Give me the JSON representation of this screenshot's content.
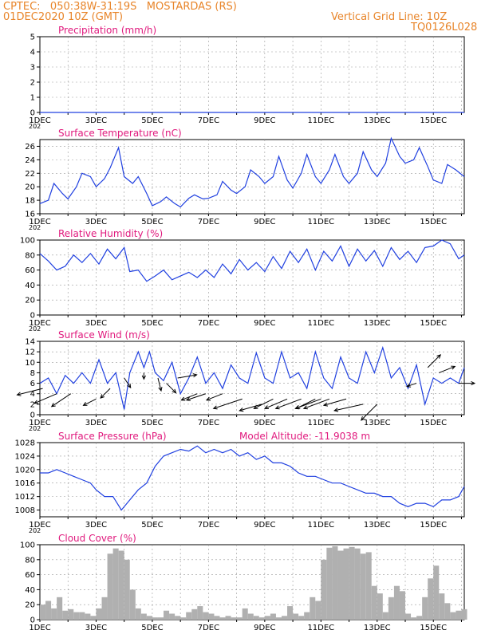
{
  "header": {
    "line1_left": "CPTEC:   050:38W-31:19S   MOSTARDAS (RS)",
    "line2_left": "01DEC2020 10Z (GMT)",
    "line1_right": "Vertical Grid Line: 10Z",
    "line2_right": "TQ0126L028"
  },
  "colors": {
    "header": "#e8852a",
    "title": "#e0197d",
    "line": "#2040e0",
    "cloud": "#b0b0b0",
    "arrow": "#000000"
  },
  "x_axis": {
    "tick_labels": [
      "1DEC",
      "3DEC",
      "5DEC",
      "7DEC",
      "9DEC",
      "11DEC",
      "13DEC",
      "15DEC"
    ],
    "tick_days": [
      1,
      3,
      5,
      7,
      9,
      11,
      13,
      15
    ],
    "range": [
      1,
      16.1
    ],
    "year_fragment": "202"
  },
  "chart_data": [
    {
      "type": "line",
      "title": "Precipitation (mm/h)",
      "ylim": [
        0,
        5
      ],
      "y_ticks": [
        "0",
        "1",
        "2",
        "3",
        "4",
        "5"
      ],
      "x": [
        1,
        16.1
      ],
      "values": [
        0,
        0
      ]
    },
    {
      "type": "line",
      "title": "Surface Temperature (nC)",
      "ylim": [
        16,
        27
      ],
      "y_ticks": [
        "16",
        "18",
        "20",
        "22",
        "24",
        "26"
      ],
      "x": [
        1.0,
        1.3,
        1.5,
        1.8,
        2.0,
        2.3,
        2.5,
        2.8,
        3.0,
        3.3,
        3.5,
        3.8,
        4.0,
        4.3,
        4.5,
        4.8,
        5.0,
        5.3,
        5.5,
        5.8,
        6.0,
        6.3,
        6.5,
        6.8,
        7.0,
        7.3,
        7.5,
        7.8,
        8.0,
        8.3,
        8.5,
        8.8,
        9.0,
        9.3,
        9.5,
        9.8,
        10.0,
        10.3,
        10.5,
        10.8,
        11.0,
        11.3,
        11.5,
        11.8,
        12.0,
        12.3,
        12.5,
        12.8,
        13.0,
        13.3,
        13.5,
        13.8,
        14.0,
        14.3,
        14.5,
        14.8,
        15.0,
        15.3,
        15.5,
        15.8,
        16.1
      ],
      "values": [
        17.5,
        18.0,
        20.5,
        19.0,
        18.2,
        20.0,
        22.0,
        21.5,
        20.0,
        21.2,
        22.8,
        25.8,
        21.5,
        20.5,
        21.5,
        19.0,
        17.2,
        17.8,
        18.5,
        17.5,
        17.0,
        18.3,
        18.8,
        18.2,
        18.3,
        18.8,
        20.8,
        19.5,
        19.0,
        20.0,
        22.5,
        21.5,
        20.5,
        21.5,
        24.5,
        21.0,
        19.8,
        22.0,
        24.8,
        21.5,
        20.5,
        22.5,
        24.8,
        21.5,
        20.5,
        22.0,
        25.2,
        22.5,
        21.5,
        23.5,
        27.2,
        24.5,
        23.5,
        24.0,
        25.8,
        23.0,
        21.0,
        20.5,
        23.3,
        22.5,
        21.5
      ]
    },
    {
      "type": "line",
      "title": "Relative Humidity (%)",
      "ylim": [
        0,
        100
      ],
      "y_ticks": [
        "0",
        "20",
        "40",
        "60",
        "80",
        "100"
      ],
      "x": [
        1.0,
        1.3,
        1.6,
        1.9,
        2.2,
        2.5,
        2.8,
        3.1,
        3.4,
        3.7,
        4.0,
        4.2,
        4.5,
        4.8,
        5.1,
        5.4,
        5.7,
        6.0,
        6.3,
        6.6,
        6.9,
        7.2,
        7.5,
        7.8,
        8.1,
        8.4,
        8.7,
        9.0,
        9.3,
        9.6,
        9.9,
        10.2,
        10.5,
        10.8,
        11.1,
        11.4,
        11.7,
        12.0,
        12.3,
        12.6,
        12.9,
        13.2,
        13.5,
        13.8,
        14.1,
        14.4,
        14.7,
        15.0,
        15.3,
        15.6,
        15.9,
        16.1
      ],
      "values": [
        82,
        72,
        60,
        65,
        80,
        70,
        82,
        68,
        88,
        75,
        90,
        58,
        60,
        45,
        52,
        60,
        47,
        52,
        57,
        50,
        60,
        50,
        68,
        55,
        74,
        60,
        70,
        58,
        78,
        62,
        85,
        70,
        88,
        60,
        85,
        72,
        92,
        65,
        88,
        72,
        86,
        65,
        90,
        74,
        85,
        70,
        90,
        92,
        100,
        95,
        75,
        80
      ]
    },
    {
      "type": "line",
      "title": "Surface Wind (m/s)",
      "ylim": [
        0,
        14
      ],
      "y_ticks": [
        "0",
        "2",
        "4",
        "6",
        "8",
        "10",
        "12",
        "14"
      ],
      "x": [
        1.0,
        1.3,
        1.6,
        1.9,
        2.2,
        2.5,
        2.8,
        3.1,
        3.4,
        3.7,
        4.0,
        4.2,
        4.5,
        4.7,
        4.9,
        5.1,
        5.4,
        5.7,
        6.0,
        6.3,
        6.6,
        6.9,
        7.2,
        7.5,
        7.8,
        8.1,
        8.4,
        8.7,
        9.0,
        9.3,
        9.6,
        9.9,
        10.2,
        10.5,
        10.8,
        11.1,
        11.4,
        11.7,
        12.0,
        12.3,
        12.6,
        12.9,
        13.2,
        13.5,
        13.8,
        14.1,
        14.4,
        14.7,
        15.0,
        15.3,
        15.6,
        15.9,
        16.1
      ],
      "values": [
        6,
        7,
        4,
        7.5,
        6,
        8,
        6,
        10.5,
        6,
        8,
        1,
        8,
        12,
        9,
        12,
        8,
        6.5,
        10,
        4,
        7,
        11,
        6,
        8,
        5,
        9.5,
        7,
        6,
        11.8,
        7,
        6,
        12,
        7,
        8,
        5,
        12,
        7,
        5,
        11,
        7,
        6,
        12,
        8,
        12.8,
        7,
        9,
        5,
        9.5,
        2,
        7,
        6,
        7,
        6,
        9
      ]
    },
    {
      "type": "line",
      "title": "Surface Pressure (hPa)",
      "annotation": "Model Altitude: -11.9038 m",
      "ylim": [
        1006,
        1028
      ],
      "y_ticks": [
        "1008",
        "1012",
        "1016",
        "1020",
        "1024",
        "1028"
      ],
      "x": [
        1.0,
        1.3,
        1.6,
        1.9,
        2.2,
        2.5,
        2.8,
        3.0,
        3.3,
        3.6,
        3.9,
        4.2,
        4.5,
        4.8,
        5.1,
        5.4,
        5.7,
        6.0,
        6.3,
        6.6,
        6.9,
        7.2,
        7.5,
        7.8,
        8.1,
        8.4,
        8.7,
        9.0,
        9.3,
        9.6,
        9.9,
        10.2,
        10.5,
        10.8,
        11.1,
        11.4,
        11.7,
        12.0,
        12.3,
        12.6,
        12.9,
        13.2,
        13.5,
        13.8,
        14.1,
        14.4,
        14.7,
        15.0,
        15.3,
        15.6,
        15.9,
        16.1
      ],
      "values": [
        1019,
        1019,
        1020,
        1019,
        1018,
        1017,
        1016,
        1014,
        1012,
        1012,
        1008,
        1011,
        1014,
        1016,
        1021,
        1024,
        1025,
        1026,
        1025.5,
        1027,
        1025,
        1026,
        1025,
        1026,
        1024,
        1025,
        1023,
        1024,
        1022,
        1022,
        1021,
        1019,
        1018,
        1018,
        1017,
        1016,
        1016,
        1015,
        1014,
        1013,
        1013,
        1012,
        1012,
        1010,
        1009,
        1010,
        1010,
        1009,
        1011,
        1011,
        1012,
        1015
      ]
    },
    {
      "type": "bar",
      "title": "Cloud Cover (%)",
      "ylim": [
        0,
        100
      ],
      "y_ticks": [
        "0",
        "20",
        "40",
        "60",
        "80",
        "100"
      ],
      "x": [
        1.0,
        1.2,
        1.4,
        1.6,
        1.8,
        2.0,
        2.2,
        2.4,
        2.6,
        2.8,
        3.0,
        3.2,
        3.4,
        3.6,
        3.8,
        4.0,
        4.2,
        4.4,
        4.6,
        4.8,
        5.0,
        5.2,
        5.4,
        5.6,
        5.8,
        6.0,
        6.2,
        6.4,
        6.6,
        6.8,
        7.0,
        7.2,
        7.4,
        7.6,
        7.8,
        8.0,
        8.2,
        8.4,
        8.6,
        8.8,
        9.0,
        9.2,
        9.4,
        9.6,
        9.8,
        10.0,
        10.2,
        10.4,
        10.6,
        10.8,
        11.0,
        11.2,
        11.4,
        11.6,
        11.8,
        12.0,
        12.2,
        12.4,
        12.6,
        12.8,
        13.0,
        13.2,
        13.4,
        13.6,
        13.8,
        14.0,
        14.2,
        14.4,
        14.6,
        14.8,
        15.0,
        15.2,
        15.4,
        15.6,
        15.8,
        16.0
      ],
      "values": [
        20,
        25,
        15,
        30,
        12,
        14,
        10,
        10,
        8,
        5,
        15,
        30,
        88,
        95,
        92,
        80,
        40,
        15,
        8,
        5,
        3,
        3,
        12,
        8,
        5,
        3,
        10,
        14,
        18,
        10,
        8,
        5,
        3,
        5,
        3,
        3,
        15,
        8,
        5,
        3,
        5,
        8,
        3,
        5,
        18,
        8,
        5,
        10,
        30,
        25,
        80,
        96,
        98,
        92,
        95,
        97,
        95,
        88,
        90,
        45,
        35,
        10,
        30,
        45,
        38,
        8,
        3,
        5,
        30,
        55,
        72,
        35,
        22,
        10,
        12,
        14
      ]
    },
    {
      "type": "scatter",
      "title": "Surface Wind vectors",
      "x": [
        1.1,
        1.6,
        2.1,
        3.0,
        3.5,
        4.0,
        4.7,
        5.2,
        5.5,
        5.9,
        6.6,
        6.9,
        7.5,
        8.2,
        8.9,
        9.3,
        9.8,
        10.3,
        10.8,
        11.0,
        11.3,
        11.9,
        12.5,
        13.0,
        14.4,
        14.8,
        15.2,
        15.9
      ],
      "y": [
        5,
        4,
        4,
        3,
        5,
        7,
        8,
        7,
        6,
        7,
        4,
        4,
        4,
        3,
        2,
        3,
        3,
        3,
        3,
        3,
        3,
        3,
        2,
        2,
        6,
        9,
        8,
        6
      ],
      "u": [
        8,
        7,
        6,
        4,
        3,
        -2,
        0,
        -1,
        -3,
        -6,
        5,
        6,
        5,
        9,
        7,
        6,
        7,
        8,
        6,
        8,
        8,
        7,
        9,
        5,
        3,
        -4,
        -5,
        -5
      ],
      "v": [
        2,
        3,
        4,
        2,
        3,
        3,
        2,
        4,
        3,
        -1,
        2,
        2,
        2,
        3,
        2,
        3,
        3,
        3,
        3,
        3,
        3,
        2,
        2,
        5,
        1,
        -4,
        -2,
        0
      ]
    }
  ]
}
